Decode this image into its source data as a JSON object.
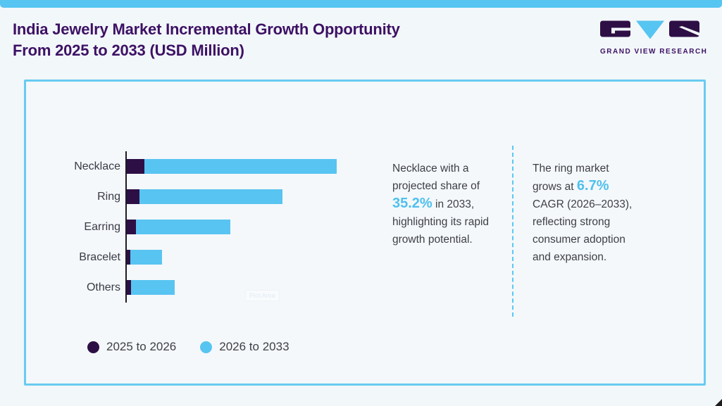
{
  "header": {
    "title_line1": "India Jewelry Market Incremental Growth Opportunity",
    "title_line2": "From 2025 to 2033 (USD Million)",
    "logo_text": "GRAND VIEW RESEARCH"
  },
  "colors": {
    "topbar": "#56C5F1",
    "title_purple": "#3D1164",
    "bar_dark": "#2E0F45",
    "bar_blue": "#58C4F1",
    "highlight_blue": "#4FC0EF",
    "card_border": "#69CBF2",
    "dashed_separator": "#5BC8F3",
    "background": "#F2F7FA"
  },
  "chart_data": {
    "type": "bar",
    "orientation": "horizontal",
    "stacked": true,
    "title": "India Jewelry Market Incremental Growth Opportunity From 2025 to 2033 (USD Million)",
    "categories": [
      "Necklace",
      "Ring",
      "Earring",
      "Bracelet",
      "Others"
    ],
    "series": [
      {
        "name": "2025 to 2026",
        "color": "#2E0F45",
        "values": [
          25,
          18,
          13,
          5,
          6
        ]
      },
      {
        "name": "2026 to 2033",
        "color": "#58C4F1",
        "values": [
          273,
          203,
          134,
          45,
          62
        ]
      }
    ],
    "value_units": "relative bar length (axis unlabeled, USD Million implied)",
    "axis_labels_shown": false,
    "grid": false,
    "legend_position": "bottom-left"
  },
  "annotations": [
    {
      "segments": [
        {
          "t": "Necklace with a projected share of "
        },
        {
          "t": "35.2%",
          "hl": true
        },
        {
          "t": " in 2033, highlighting its rapid growth potential."
        }
      ]
    },
    {
      "segments": [
        {
          "t": "The ring market grows at "
        },
        {
          "t": "6.7%",
          "hl": true
        },
        {
          "t": " CAGR (2026–2033), reflecting strong consumer adoption and expansion."
        }
      ]
    }
  ],
  "artifacts": {
    "plot_area_label": "Plot Area"
  }
}
